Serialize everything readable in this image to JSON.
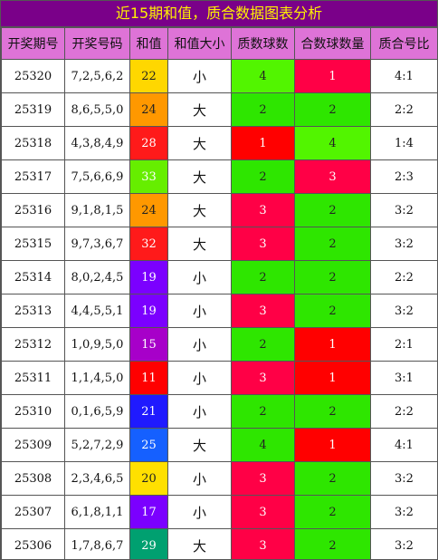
{
  "title": "近15期和值，质合数据图表分析",
  "columns": [
    "开奖期号",
    "开奖号码",
    "和值",
    "和值大小",
    "质数球数",
    "合数球数量",
    "质合号比"
  ],
  "colors": {
    "title_bg": "#7a0089",
    "title_text": "#fff200",
    "header_bg": "#de73d7"
  },
  "rows": [
    {
      "period": "25320",
      "numbers": "7,2,5,6,2",
      "sum": "22",
      "sum_color": "#ffd700",
      "sum_text": "#222222",
      "size": "小",
      "prime": "4",
      "prime_color": "#52f500",
      "comp": "1",
      "comp_color": "#ff0046"
    },
    {
      "period": "25319",
      "numbers": "8,6,5,5,0",
      "sum": "24",
      "sum_color": "#ff9800",
      "sum_text": "#222222",
      "size": "大",
      "prime": "2",
      "prime_color": "#2ee600",
      "comp": "2",
      "comp_color": "#2ee600"
    },
    {
      "period": "25318",
      "numbers": "4,3,8,4,9",
      "sum": "28",
      "sum_color": "#ff1a1a",
      "sum_text": "#ffffff",
      "size": "大",
      "prime": "1",
      "prime_color": "#ff0000",
      "comp": "4",
      "comp_color": "#52f500"
    },
    {
      "period": "25317",
      "numbers": "7,5,6,6,9",
      "sum": "33",
      "sum_color": "#66ee00",
      "sum_text": "#ffffff",
      "size": "大",
      "prime": "2",
      "prime_color": "#2ee600",
      "comp": "3",
      "comp_color": "#ff0046"
    },
    {
      "period": "25316",
      "numbers": "9,1,8,1,5",
      "sum": "24",
      "sum_color": "#ff9800",
      "sum_text": "#222222",
      "size": "大",
      "prime": "3",
      "prime_color": "#ff0046",
      "comp": "2",
      "comp_color": "#2ee600"
    },
    {
      "period": "25315",
      "numbers": "9,7,3,6,7",
      "sum": "32",
      "sum_color": "#ff1a1a",
      "sum_text": "#ffffff",
      "size": "大",
      "prime": "3",
      "prime_color": "#ff0046",
      "comp": "2",
      "comp_color": "#2ee600"
    },
    {
      "period": "25314",
      "numbers": "8,0,2,4,5",
      "sum": "19",
      "sum_color": "#7b00ff",
      "sum_text": "#ffffff",
      "size": "小",
      "prime": "2",
      "prime_color": "#2ee600",
      "comp": "2",
      "comp_color": "#2ee600"
    },
    {
      "period": "25313",
      "numbers": "4,4,5,5,1",
      "sum": "19",
      "sum_color": "#7b00ff",
      "sum_text": "#ffffff",
      "size": "小",
      "prime": "3",
      "prime_color": "#ff0046",
      "comp": "2",
      "comp_color": "#2ee600"
    },
    {
      "period": "25312",
      "numbers": "1,0,9,5,0",
      "sum": "15",
      "sum_color": "#a700c9",
      "sum_text": "#ffffff",
      "size": "小",
      "prime": "2",
      "prime_color": "#2ee600",
      "comp": "1",
      "comp_color": "#ff0000"
    },
    {
      "period": "25311",
      "numbers": "1,1,4,5,0",
      "sum": "11",
      "sum_color": "#ff0000",
      "sum_text": "#ffffff",
      "size": "小",
      "prime": "3",
      "prime_color": "#ff0046",
      "comp": "1",
      "comp_color": "#ff0000"
    },
    {
      "period": "25310",
      "numbers": "0,1,6,5,9",
      "sum": "21",
      "sum_color": "#1f1aff",
      "sum_text": "#ffffff",
      "size": "小",
      "prime": "2",
      "prime_color": "#2ee600",
      "comp": "2",
      "comp_color": "#2ee600"
    },
    {
      "period": "25309",
      "numbers": "5,2,7,2,9",
      "sum": "25",
      "sum_color": "#1560ff",
      "sum_text": "#ffffff",
      "size": "大",
      "prime": "4",
      "prime_color": "#2ee600",
      "comp": "1",
      "comp_color": "#ff0000"
    },
    {
      "period": "25308",
      "numbers": "2,3,4,6,5",
      "sum": "20",
      "sum_color": "#ffe000",
      "sum_text": "#222222",
      "size": "小",
      "prime": "3",
      "prime_color": "#ff0046",
      "comp": "2",
      "comp_color": "#2ee600"
    },
    {
      "period": "25307",
      "numbers": "6,1,8,1,1",
      "sum": "17",
      "sum_color": "#7b00ff",
      "sum_text": "#ffffff",
      "size": "小",
      "prime": "3",
      "prime_color": "#ff0046",
      "comp": "2",
      "comp_color": "#2ee600"
    },
    {
      "period": "25306",
      "numbers": "1,7,8,6,7",
      "sum": "29",
      "sum_color": "#00a070",
      "sum_text": "#ffffff",
      "size": "大",
      "prime": "3",
      "prime_color": "#ff0046",
      "comp": "2",
      "comp_color": "#2ee600"
    }
  ],
  "ratios": [
    "4:1",
    "2:2",
    "1:4",
    "2:3",
    "3:2",
    "3:2",
    "2:2",
    "3:2",
    "2:1",
    "3:1",
    "2:2",
    "4:1",
    "3:2",
    "3:2",
    "3:2"
  ]
}
